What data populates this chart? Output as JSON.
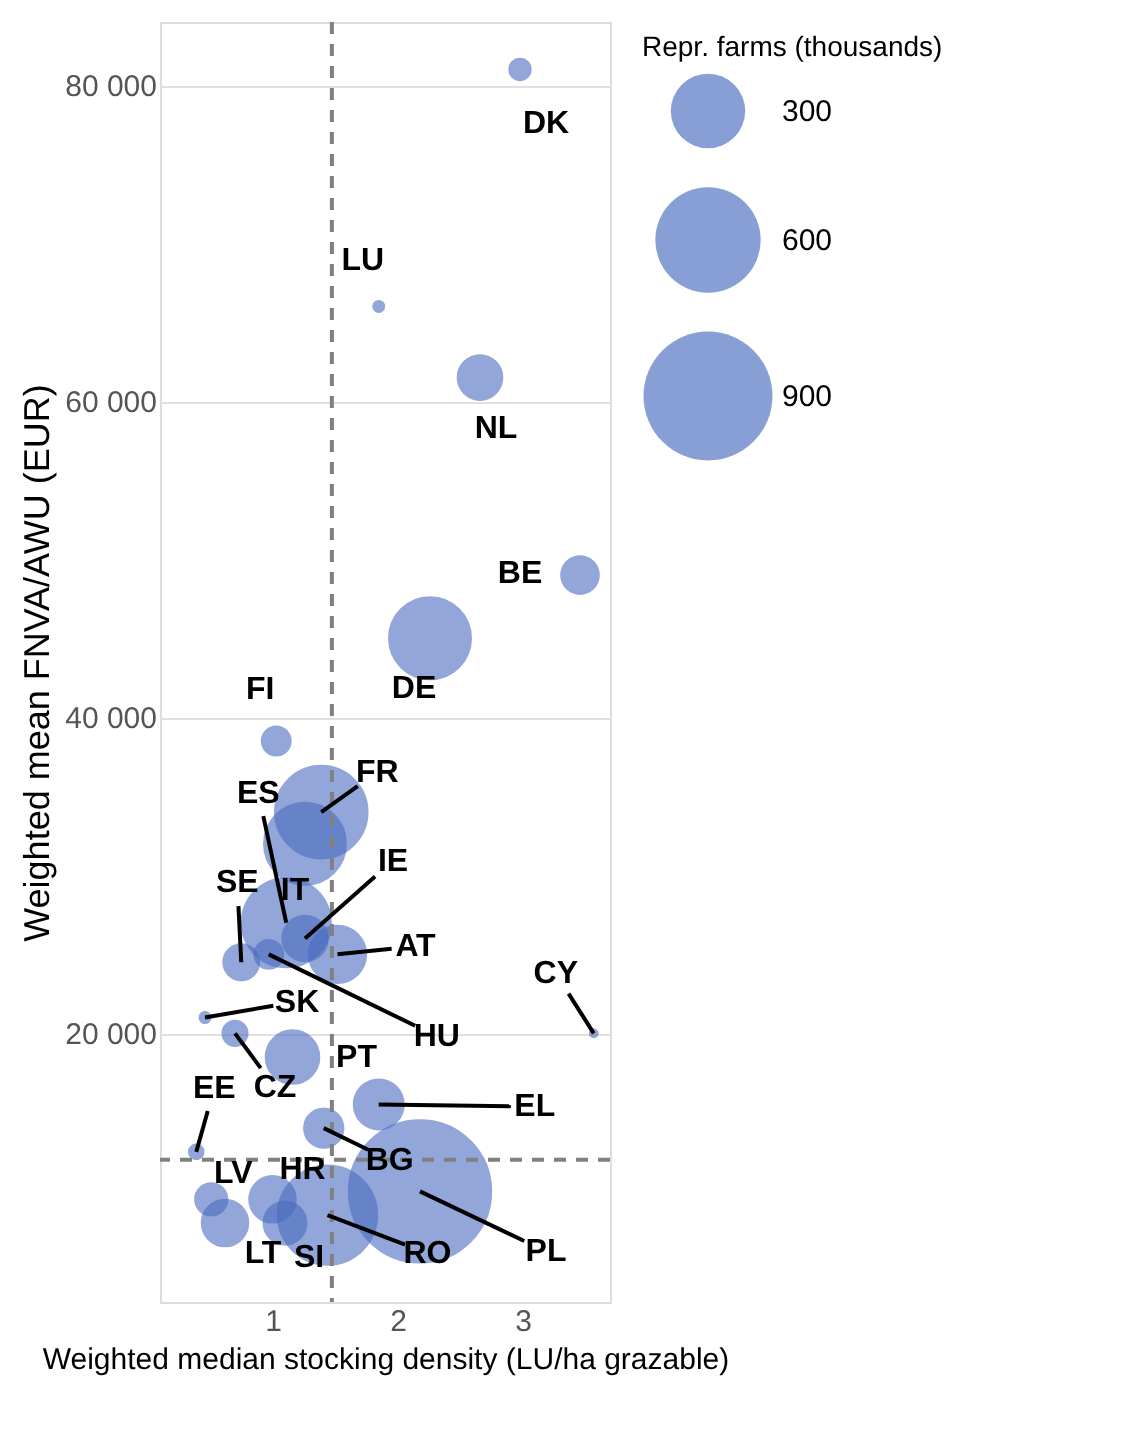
{
  "chart_data": {
    "type": "bubble",
    "xlabel": "Weighted median stocking density (LU/ha grazable)",
    "ylabel": "Weighted mean FNVA/AWU (EUR)",
    "legend_title": "Repr. farms (thousands)",
    "color": "#4a6cc0",
    "x": [
      2.98,
      1.85,
      2.66,
      3.46,
      2.26,
      1.03,
      1.39,
      1.26,
      1.11,
      1.26,
      1.52,
      0.75,
      0.97,
      0.46,
      0.7,
      1.16,
      0.39,
      3.57,
      1.85,
      1.41,
      0.51,
      1.0,
      0.62,
      1.1,
      1.44,
      2.18
    ],
    "values": [
      81000,
      66000,
      61500,
      49000,
      45000,
      38500,
      34000,
      32000,
      27000,
      26000,
      25000,
      24500,
      25000,
      21000,
      20000,
      18500,
      12500,
      20000,
      15500,
      14000,
      9500,
      9500,
      8000,
      8000,
      8500,
      10000
    ],
    "sizes": [
      24,
      6,
      106,
      75,
      360,
      44,
      460,
      360,
      425,
      110,
      175,
      68,
      44,
      6,
      33,
      153,
      11,
      3,
      133,
      82,
      55,
      115,
      115,
      98,
      530,
      1090
    ],
    "size_legend": [
      300,
      600,
      900
    ],
    "xlim": [
      0.1,
      3.7
    ],
    "ylim": [
      3000,
      84000
    ],
    "xticks": [
      1,
      2,
      3
    ],
    "yticks": [
      {
        "value": 20000,
        "label": "20 000"
      },
      {
        "value": 40000,
        "label": "40 000"
      },
      {
        "value": 60000,
        "label": "60 000"
      },
      {
        "value": 80000,
        "label": "80 000"
      }
    ],
    "grid": "y",
    "ref_lines": [
      {
        "axis": "x",
        "value": 1.475,
        "color": "#808080",
        "line_style": "dashed"
      },
      {
        "axis": "y",
        "value": 12000,
        "color": "#808080",
        "line_style": "dashed"
      }
    ],
    "annotations": [
      {
        "text": "DK",
        "x": 2.98,
        "y": 81000
      },
      {
        "text": "LU",
        "x": 1.85,
        "y": 66000
      },
      {
        "text": "NL",
        "x": 2.66,
        "y": 61500
      },
      {
        "text": "BE",
        "x": 3.46,
        "y": 49000
      },
      {
        "text": "DE",
        "x": 2.26,
        "y": 45000
      },
      {
        "text": "FI",
        "x": 1.03,
        "y": 38500
      },
      {
        "text": "FR",
        "x": 1.39,
        "y": 34000
      },
      {
        "text": "IT",
        "x": 1.26,
        "y": 32000
      },
      {
        "text": "ES",
        "x": 1.11,
        "y": 27000
      },
      {
        "text": "IE",
        "x": 1.26,
        "y": 26000
      },
      {
        "text": "AT",
        "x": 1.52,
        "y": 25000
      },
      {
        "text": "SE",
        "x": 0.75,
        "y": 24500
      },
      {
        "text": "HU",
        "x": 0.97,
        "y": 25000
      },
      {
        "text": "SK",
        "x": 0.46,
        "y": 21000
      },
      {
        "text": "CZ",
        "x": 0.7,
        "y": 20000
      },
      {
        "text": "PT",
        "x": 1.16,
        "y": 18500
      },
      {
        "text": "EE",
        "x": 0.39,
        "y": 12500
      },
      {
        "text": "CY",
        "x": 3.57,
        "y": 20000
      },
      {
        "text": "EL",
        "x": 1.85,
        "y": 15500
      },
      {
        "text": "BG",
        "x": 1.41,
        "y": 14000
      },
      {
        "text": "LV",
        "x": 0.51,
        "y": 9500
      },
      {
        "text": "HR",
        "x": 1.0,
        "y": 9500
      },
      {
        "text": "LT",
        "x": 0.62,
        "y": 8000
      },
      {
        "text": "SI",
        "x": 1.1,
        "y": 8000
      },
      {
        "text": "RO",
        "x": 1.44,
        "y": 8500
      },
      {
        "text": "PL",
        "x": 2.18,
        "y": 10000
      }
    ]
  }
}
